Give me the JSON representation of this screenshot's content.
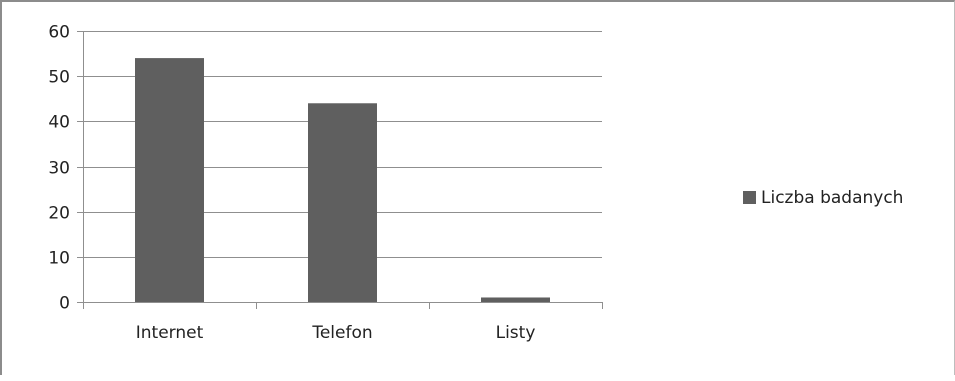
{
  "chart_data": {
    "type": "bar",
    "categories": [
      "Internet",
      "Telefon",
      "Listy"
    ],
    "series": [
      {
        "name": "Liczba badanych",
        "values": [
          54,
          44,
          1
        ]
      }
    ],
    "y_ticks": [
      "0",
      "10",
      "20",
      "30",
      "40",
      "50",
      "60"
    ],
    "ylim": [
      0,
      60
    ],
    "grid": true,
    "legend": "right",
    "colors": {
      "bar": "#5f5f5f",
      "grid": "#8f8f8f",
      "axis": "#8f8f8f"
    }
  }
}
